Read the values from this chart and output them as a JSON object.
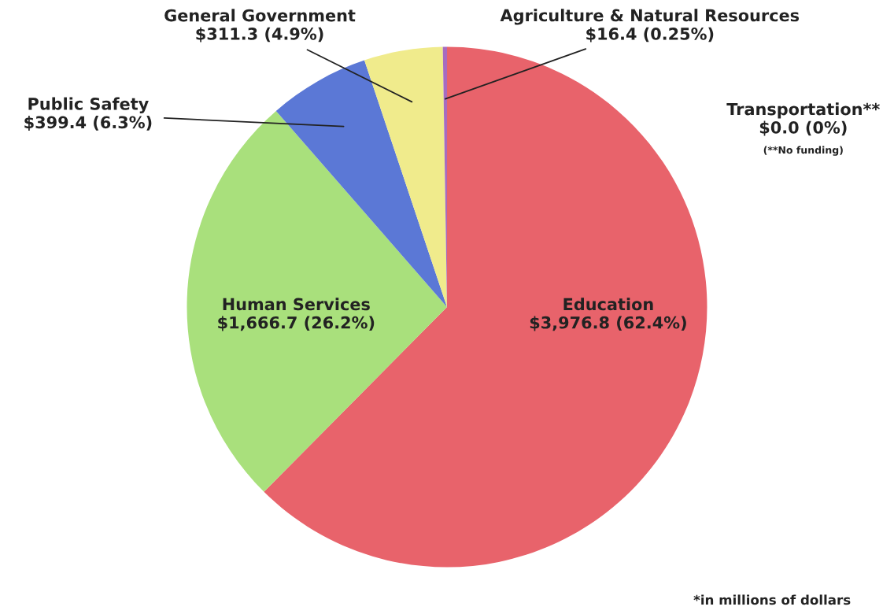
{
  "chart_data": {
    "type": "pie",
    "categories": [
      "Education",
      "Human Services",
      "Public Safety",
      "General Government",
      "Agriculture & Natural Resources",
      "Transportation**"
    ],
    "values": [
      3976.8,
      1666.7,
      399.4,
      311.3,
      16.4,
      0.0
    ],
    "value_labels": [
      "$3,976.8 (62.4%)",
      "$1,666.7 (26.2%)",
      "$399.4 (6.3%)",
      "$311.3 (4.9%)",
      "$16.4 (0.25%)",
      "$0.0 (0%)"
    ],
    "colors": [
      "#e8636b",
      "#a9e07c",
      "#5b78d6",
      "#f0eb8c",
      "#a66cc0",
      "#9aa0a6"
    ],
    "annotations": [
      "(**No funding)",
      "*in millions of dollars"
    ]
  }
}
